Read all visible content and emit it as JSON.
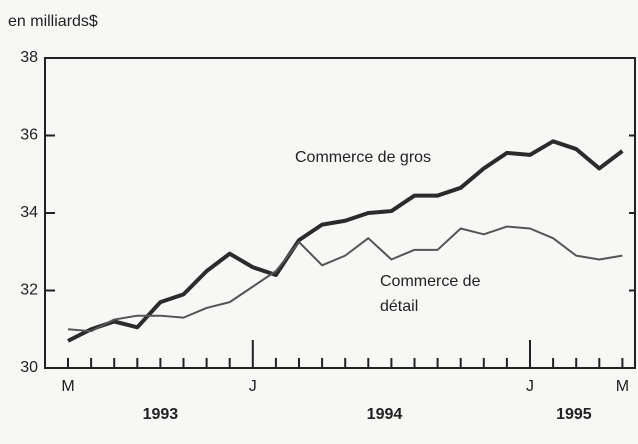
{
  "chart_data": {
    "type": "line",
    "y_axis_label": "en milliards$",
    "categories": [
      "M",
      null,
      null,
      null,
      null,
      null,
      null,
      null,
      "J",
      null,
      null,
      null,
      null,
      null,
      null,
      null,
      null,
      null,
      null,
      null,
      "J",
      null,
      null,
      null,
      "M"
    ],
    "year_labels": [
      "1993",
      "1994",
      "1995"
    ],
    "series": [
      {
        "name": "Commerce de gros",
        "color": "#2b2b2b",
        "values": [
          30.7,
          31.0,
          31.2,
          31.05,
          31.7,
          31.9,
          32.5,
          32.95,
          32.6,
          32.4,
          33.3,
          33.7,
          33.8,
          34.0,
          34.05,
          34.45,
          34.45,
          34.65,
          35.15,
          35.55,
          35.5,
          35.85,
          35.65,
          35.15,
          35.6
        ]
      },
      {
        "name": "Commerce de détail",
        "color": "#555555",
        "values": [
          31.0,
          30.95,
          31.25,
          31.35,
          31.35,
          31.3,
          31.55,
          31.7,
          32.1,
          32.5,
          33.25,
          32.65,
          32.9,
          33.35,
          32.8,
          33.05,
          33.05,
          33.6,
          33.45,
          33.65,
          33.6,
          33.35,
          32.9,
          32.8,
          32.9
        ]
      }
    ],
    "annotations": [
      [
        "Commerce de gros"
      ],
      [
        "Commerce de",
        "détail"
      ]
    ],
    "ylim": [
      30,
      38
    ],
    "yticks": [
      30,
      32,
      34,
      36,
      38
    ]
  }
}
